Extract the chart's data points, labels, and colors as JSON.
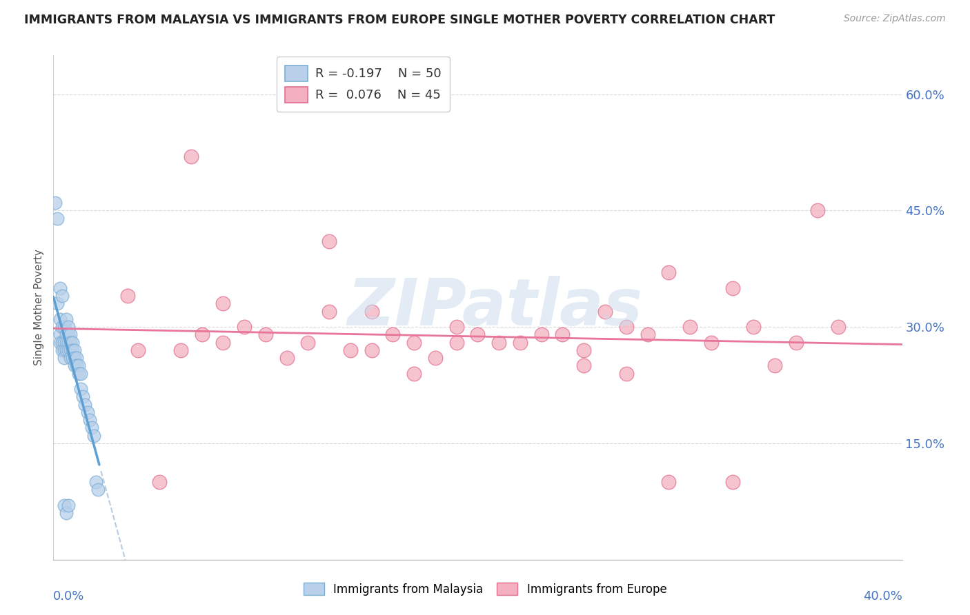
{
  "title": "IMMIGRANTS FROM MALAYSIA VS IMMIGRANTS FROM EUROPE SINGLE MOTHER POVERTY CORRELATION CHART",
  "source": "Source: ZipAtlas.com",
  "ylabel": "Single Mother Poverty",
  "ytick_vals": [
    0.0,
    0.15,
    0.3,
    0.45,
    0.6
  ],
  "ytick_labels": [
    "",
    "15.0%",
    "30.0%",
    "45.0%",
    "60.0%"
  ],
  "xlim": [
    0.0,
    0.4
  ],
  "ylim": [
    0.0,
    0.65
  ],
  "xleft_label": "0.0%",
  "xright_label": "40.0%",
  "color_malaysia_face": "#b8d0ea",
  "color_malaysia_edge": "#7bafd6",
  "color_europe_face": "#f4b0c0",
  "color_europe_edge": "#e07090",
  "color_line_malaysia": "#5b9fd4",
  "color_line_europe": "#e8759a",
  "color_dashed": "#b8cce0",
  "color_grid": "#d8d8d8",
  "watermark": "ZIPatlas",
  "watermark_color": "#ccdcec",
  "title_color": "#222222",
  "source_color": "#999999",
  "axis_label_color": "#4472c4",
  "ylabel_color": "#555555",
  "legend_entries": [
    {
      "label": "R = -0.197    N = 50"
    },
    {
      "label": "R =  0.076    N = 45"
    }
  ],
  "bottom_legend": [
    "Immigrants from Malaysia",
    "Immigrants from Europe"
  ],
  "malaysia_x": [
    0.001,
    0.002,
    0.002,
    0.003,
    0.003,
    0.003,
    0.004,
    0.004,
    0.004,
    0.005,
    0.005,
    0.005,
    0.005,
    0.006,
    0.006,
    0.006,
    0.006,
    0.007,
    0.007,
    0.007,
    0.007,
    0.008,
    0.008,
    0.008,
    0.008,
    0.009,
    0.009,
    0.009,
    0.01,
    0.01,
    0.01,
    0.011,
    0.011,
    0.012,
    0.012,
    0.013,
    0.013,
    0.014,
    0.015,
    0.016,
    0.017,
    0.018,
    0.019,
    0.02,
    0.021,
    0.003,
    0.004,
    0.005,
    0.006,
    0.007
  ],
  "malaysia_y": [
    0.46,
    0.44,
    0.33,
    0.31,
    0.29,
    0.28,
    0.3,
    0.28,
    0.27,
    0.3,
    0.28,
    0.27,
    0.26,
    0.31,
    0.29,
    0.28,
    0.27,
    0.3,
    0.29,
    0.28,
    0.27,
    0.29,
    0.28,
    0.27,
    0.26,
    0.28,
    0.27,
    0.26,
    0.27,
    0.26,
    0.25,
    0.26,
    0.25,
    0.25,
    0.24,
    0.24,
    0.22,
    0.21,
    0.2,
    0.19,
    0.18,
    0.17,
    0.16,
    0.1,
    0.09,
    0.35,
    0.34,
    0.07,
    0.06,
    0.07
  ],
  "europe_x": [
    0.065,
    0.13,
    0.15,
    0.17,
    0.19,
    0.2,
    0.22,
    0.24,
    0.25,
    0.27,
    0.28,
    0.3,
    0.32,
    0.33,
    0.35,
    0.37,
    0.08,
    0.1,
    0.12,
    0.14,
    0.16,
    0.18,
    0.21,
    0.23,
    0.26,
    0.29,
    0.31,
    0.34,
    0.36,
    0.07,
    0.09,
    0.11,
    0.13,
    0.15,
    0.17,
    0.19,
    0.06,
    0.08,
    0.25,
    0.27,
    0.29,
    0.32,
    0.035,
    0.04,
    0.05
  ],
  "europe_y": [
    0.52,
    0.41,
    0.32,
    0.28,
    0.3,
    0.29,
    0.28,
    0.29,
    0.27,
    0.3,
    0.29,
    0.3,
    0.35,
    0.3,
    0.28,
    0.3,
    0.33,
    0.29,
    0.28,
    0.27,
    0.29,
    0.26,
    0.28,
    0.29,
    0.32,
    0.37,
    0.28,
    0.25,
    0.45,
    0.29,
    0.3,
    0.26,
    0.32,
    0.27,
    0.24,
    0.28,
    0.27,
    0.28,
    0.25,
    0.24,
    0.1,
    0.1,
    0.34,
    0.27,
    0.1
  ]
}
